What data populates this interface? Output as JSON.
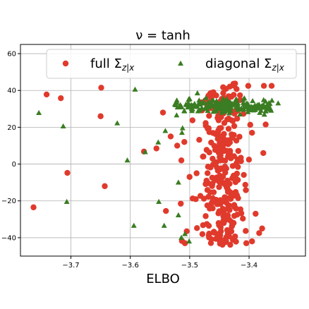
{
  "chart_data": {
    "type": "scatter",
    "title": "ν = tanh",
    "xlabel": "ELBO",
    "ylabel": "",
    "xlim": [
      -3.785,
      -3.305
    ],
    "ylim": [
      -50,
      65
    ],
    "xticks": [
      -3.7,
      -3.6,
      -3.5,
      -3.4
    ],
    "xtick_labels": [
      "−3.7",
      "−3.6",
      "−3.5",
      "−3.4"
    ],
    "yticks": [
      -40,
      -20,
      0,
      20,
      40,
      60
    ],
    "ytick_labels": [
      "−40",
      "−20",
      "0",
      "20",
      "40",
      "60"
    ],
    "grid": true,
    "legend": {
      "placement": "top",
      "columns": 2
    },
    "colors": {
      "full": "#e03a2c",
      "diagonal": "#3a7d22",
      "grid": "#b0b0b0"
    },
    "series": [
      {
        "name": "full Σ_{z|x}",
        "label_main": "full Σ",
        "label_sub": "z|x",
        "marker": "circle",
        "points": [
          [
            -3.763,
            -23.5
          ],
          [
            -3.741,
            37.8
          ],
          [
            -3.717,
            35.8
          ],
          [
            -3.706,
            -4.8
          ],
          [
            -3.649,
            41.5
          ],
          [
            -3.65,
            26.0
          ],
          [
            -3.643,
            -12.0
          ],
          [
            -3.577,
            6.8
          ],
          [
            -3.556,
            8.5
          ],
          [
            -3.545,
            28.0
          ],
          [
            -3.54,
            -25.5
          ],
          [
            -3.532,
            15.0
          ],
          [
            -3.521,
            10.0
          ],
          [
            -3.514,
            2.0
          ],
          [
            -3.509,
            12.0
          ],
          [
            -3.515,
            -21.5
          ],
          [
            -3.513,
            -41.8
          ],
          [
            -3.508,
            -43.0
          ],
          [
            -3.505,
            -36.5
          ],
          [
            -3.375,
            42.5
          ],
          [
            -3.362,
            42.5
          ],
          [
            -3.372,
            21.5
          ],
          [
            -3.376,
            6.0
          ],
          [
            -3.383,
            -37.5
          ],
          [
            -3.378,
            -35.0
          ],
          [
            -3.389,
            -27.0
          ],
          [
            -3.395,
            17.0
          ],
          [
            -3.395,
            -42.0
          ]
        ],
        "core_cluster": {
          "count": 300,
          "x_center": -3.445,
          "x_spread": 0.05,
          "y_range": [
            -44,
            44
          ]
        }
      },
      {
        "name": "diagonal Σ_{z|x}",
        "label_main": "diagonal Σ",
        "label_sub": "z|x",
        "marker": "triangle",
        "points": [
          [
            -3.754,
            27.8
          ],
          [
            -3.713,
            20.5
          ],
          [
            -3.707,
            -20.5
          ],
          [
            -3.592,
            40.5
          ],
          [
            -3.622,
            22.2
          ],
          [
            -3.605,
            2.0
          ],
          [
            -3.575,
            6.5
          ],
          [
            -3.553,
            11.8
          ],
          [
            -3.541,
            18.0
          ],
          [
            -3.552,
            -20.5
          ],
          [
            -3.543,
            -33.5
          ],
          [
            -3.594,
            -33.5
          ],
          [
            -3.522,
            26.5
          ],
          [
            -3.513,
            17.0
          ],
          [
            -3.512,
            19.5
          ],
          [
            -3.519,
            -10.0
          ],
          [
            -3.519,
            -27.8
          ],
          [
            -3.508,
            -38.0
          ],
          [
            -3.514,
            -40.0
          ],
          [
            -3.501,
            -42.0
          ],
          [
            -3.351,
            33.0
          ],
          [
            -3.367,
            32.0
          ],
          [
            -3.38,
            29.0
          ],
          [
            -3.487,
            38.5
          ]
        ],
        "core_cluster": {
          "count": 220,
          "x_range": [
            -3.525,
            -3.36
          ],
          "y_center": 31.5,
          "y_spread": 1.8
        }
      }
    ]
  }
}
